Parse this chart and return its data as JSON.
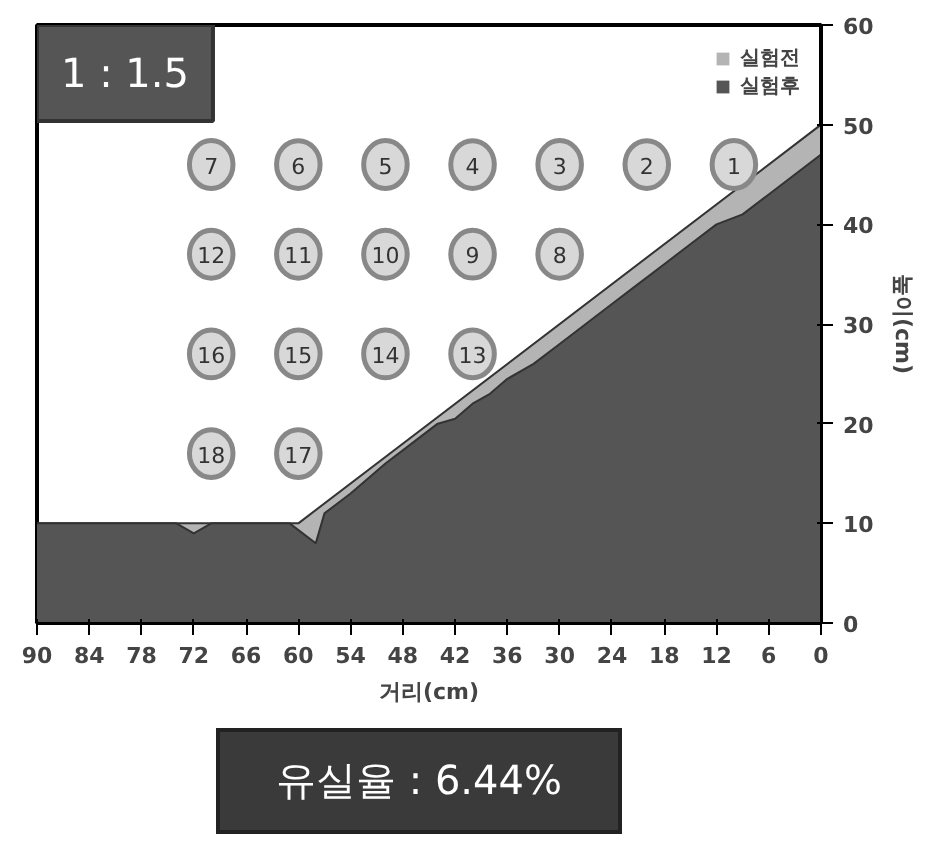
{
  "chart_data": {
    "type": "area",
    "title": "1 : 1.5",
    "xlabel": "거리(cm)",
    "ylabel": "높이(cm)",
    "xlim": [
      90,
      0
    ],
    "xticks": [
      90,
      84,
      78,
      72,
      66,
      60,
      54,
      48,
      42,
      36,
      30,
      24,
      18,
      12,
      6,
      0
    ],
    "ylim": [
      0,
      60
    ],
    "yticks": [
      0,
      10,
      20,
      30,
      40,
      50,
      60
    ],
    "grid": false,
    "legend": "top right",
    "series": [
      {
        "name": "실험전",
        "color": "#b4b4b4",
        "x": [
          90,
          60,
          0
        ],
        "values": [
          10,
          10,
          50
        ]
      },
      {
        "name": "실험후",
        "color": "#555555",
        "x": [
          90,
          74,
          72,
          70,
          61,
          58,
          57,
          54,
          50,
          47,
          44,
          42,
          40,
          38,
          36,
          33,
          30,
          27,
          24,
          21,
          18,
          15,
          12,
          9,
          6,
          3,
          0
        ],
        "values": [
          10,
          10,
          9,
          10,
          10,
          8,
          11,
          13,
          16,
          18,
          20,
          20.5,
          22,
          23,
          24.5,
          26,
          28,
          30,
          32,
          34,
          36,
          38,
          40,
          41,
          43,
          45,
          47
        ]
      }
    ],
    "annotations": [
      {
        "text": "1",
        "x": 10,
        "y": 46
      },
      {
        "text": "2",
        "x": 20,
        "y": 46
      },
      {
        "text": "3",
        "x": 30,
        "y": 46
      },
      {
        "text": "4",
        "x": 40,
        "y": 46
      },
      {
        "text": "5",
        "x": 50,
        "y": 46
      },
      {
        "text": "6",
        "x": 60,
        "y": 46
      },
      {
        "text": "7",
        "x": 70,
        "y": 46
      },
      {
        "text": "8",
        "x": 30,
        "y": 37
      },
      {
        "text": "9",
        "x": 40,
        "y": 37
      },
      {
        "text": "10",
        "x": 50,
        "y": 37
      },
      {
        "text": "11",
        "x": 60,
        "y": 37
      },
      {
        "text": "12",
        "x": 70,
        "y": 37
      },
      {
        "text": "13",
        "x": 40,
        "y": 27
      },
      {
        "text": "14",
        "x": 50,
        "y": 27
      },
      {
        "text": "15",
        "x": 60,
        "y": 27
      },
      {
        "text": "16",
        "x": 70,
        "y": 27
      },
      {
        "text": "17",
        "x": 60,
        "y": 17
      },
      {
        "text": "18",
        "x": 70,
        "y": 17
      },
      "유실율 : 6.44%"
    ]
  }
}
